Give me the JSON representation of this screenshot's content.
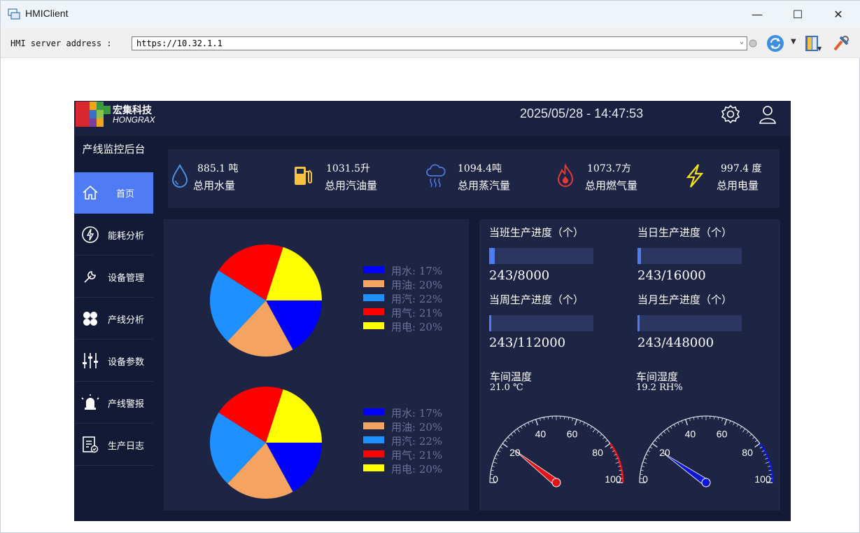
{
  "window": {
    "title": "HMIClient",
    "minimize_symbol": "—",
    "maximize_symbol": "☐",
    "close_symbol": "✕"
  },
  "toolbar": {
    "address_label": "HMI server address :",
    "address_value": "https://10.32.1.1",
    "icons": [
      "refresh-icon",
      "bookmark-icon",
      "tools-icon"
    ]
  },
  "hmi": {
    "brand_cn": "宏集科技",
    "brand_en": "HONGRAX",
    "datetime": "2025/05/28 - 14:47:53",
    "sidebar": {
      "title": "产线监控后台",
      "items": [
        {
          "label": "首页",
          "icon": "home-icon"
        },
        {
          "label": "能耗分析",
          "icon": "lightning-icon"
        },
        {
          "label": "设备管理",
          "icon": "wrench-icon"
        },
        {
          "label": "产线分析",
          "icon": "fan-icon"
        },
        {
          "label": "设备参数",
          "icon": "sliders-icon"
        },
        {
          "label": "产线警报",
          "icon": "alarm-icon"
        },
        {
          "label": "生产日志",
          "icon": "log-icon"
        }
      ]
    },
    "stats": [
      {
        "value": "885.1 吨",
        "label": "总用水量",
        "icon": "water-drop-icon",
        "color": "#4a90e2"
      },
      {
        "value": "1031.5升",
        "label": "总用汽油量",
        "icon": "fuel-pump-icon",
        "color": "#f5c242"
      },
      {
        "value": "1094.4吨",
        "label": "总用蒸汽量",
        "icon": "steam-cloud-icon",
        "color": "#4a78e0"
      },
      {
        "value": "1073.7方",
        "label": "总用燃气量",
        "icon": "flame-icon",
        "color": "#e53935"
      },
      {
        "value": "997.4 度",
        "label": "总用电量",
        "icon": "bolt-icon",
        "color": "#f5e118"
      }
    ],
    "legend": [
      {
        "label": "用水: 17%",
        "color": "#0000ff"
      },
      {
        "label": "用油: 20%",
        "color": "#f4a460"
      },
      {
        "label": "用汽: 22%",
        "color": "#1e90ff"
      },
      {
        "label": "用气: 21%",
        "color": "#ff0000"
      },
      {
        "label": "用电: 20%",
        "color": "#ffff00"
      }
    ],
    "progress": [
      {
        "title": "当班生产进度（个）",
        "value": "243/8000",
        "fraction": 0.0304
      },
      {
        "title": "当日生产进度（个）",
        "value": "243/16000",
        "fraction": 0.0152
      },
      {
        "title": "当周生产进度（个）",
        "value": "243/112000",
        "fraction": 0.0022
      },
      {
        "title": "当月生产进度（个）",
        "value": "243/448000",
        "fraction": 0.0005
      }
    ],
    "environment": [
      {
        "title": "车间温度",
        "value": "21.0 ℃",
        "reading": 21.0,
        "color": "#e0151b",
        "ticks": [
          "0",
          "20",
          "40",
          "60",
          "80",
          "100"
        ]
      },
      {
        "title": "车间湿度",
        "value": "19.2 RH%",
        "reading": 19.2,
        "color": "#0b18d8",
        "ticks": [
          "0",
          "20",
          "40",
          "60",
          "80",
          "100"
        ]
      }
    ]
  },
  "chart_data": [
    {
      "type": "pie",
      "categories": [
        "用水",
        "用油",
        "用汽",
        "用气",
        "用电"
      ],
      "values": [
        17,
        20,
        22,
        21,
        20
      ],
      "colors": [
        "#0000ff",
        "#f4a460",
        "#1e90ff",
        "#ff0000",
        "#ffff00"
      ]
    },
    {
      "type": "pie",
      "categories": [
        "用水",
        "用油",
        "用汽",
        "用气",
        "用电"
      ],
      "values": [
        17,
        20,
        22,
        21,
        20
      ],
      "colors": [
        "#0000ff",
        "#f4a460",
        "#1e90ff",
        "#ff0000",
        "#ffff00"
      ]
    }
  ]
}
